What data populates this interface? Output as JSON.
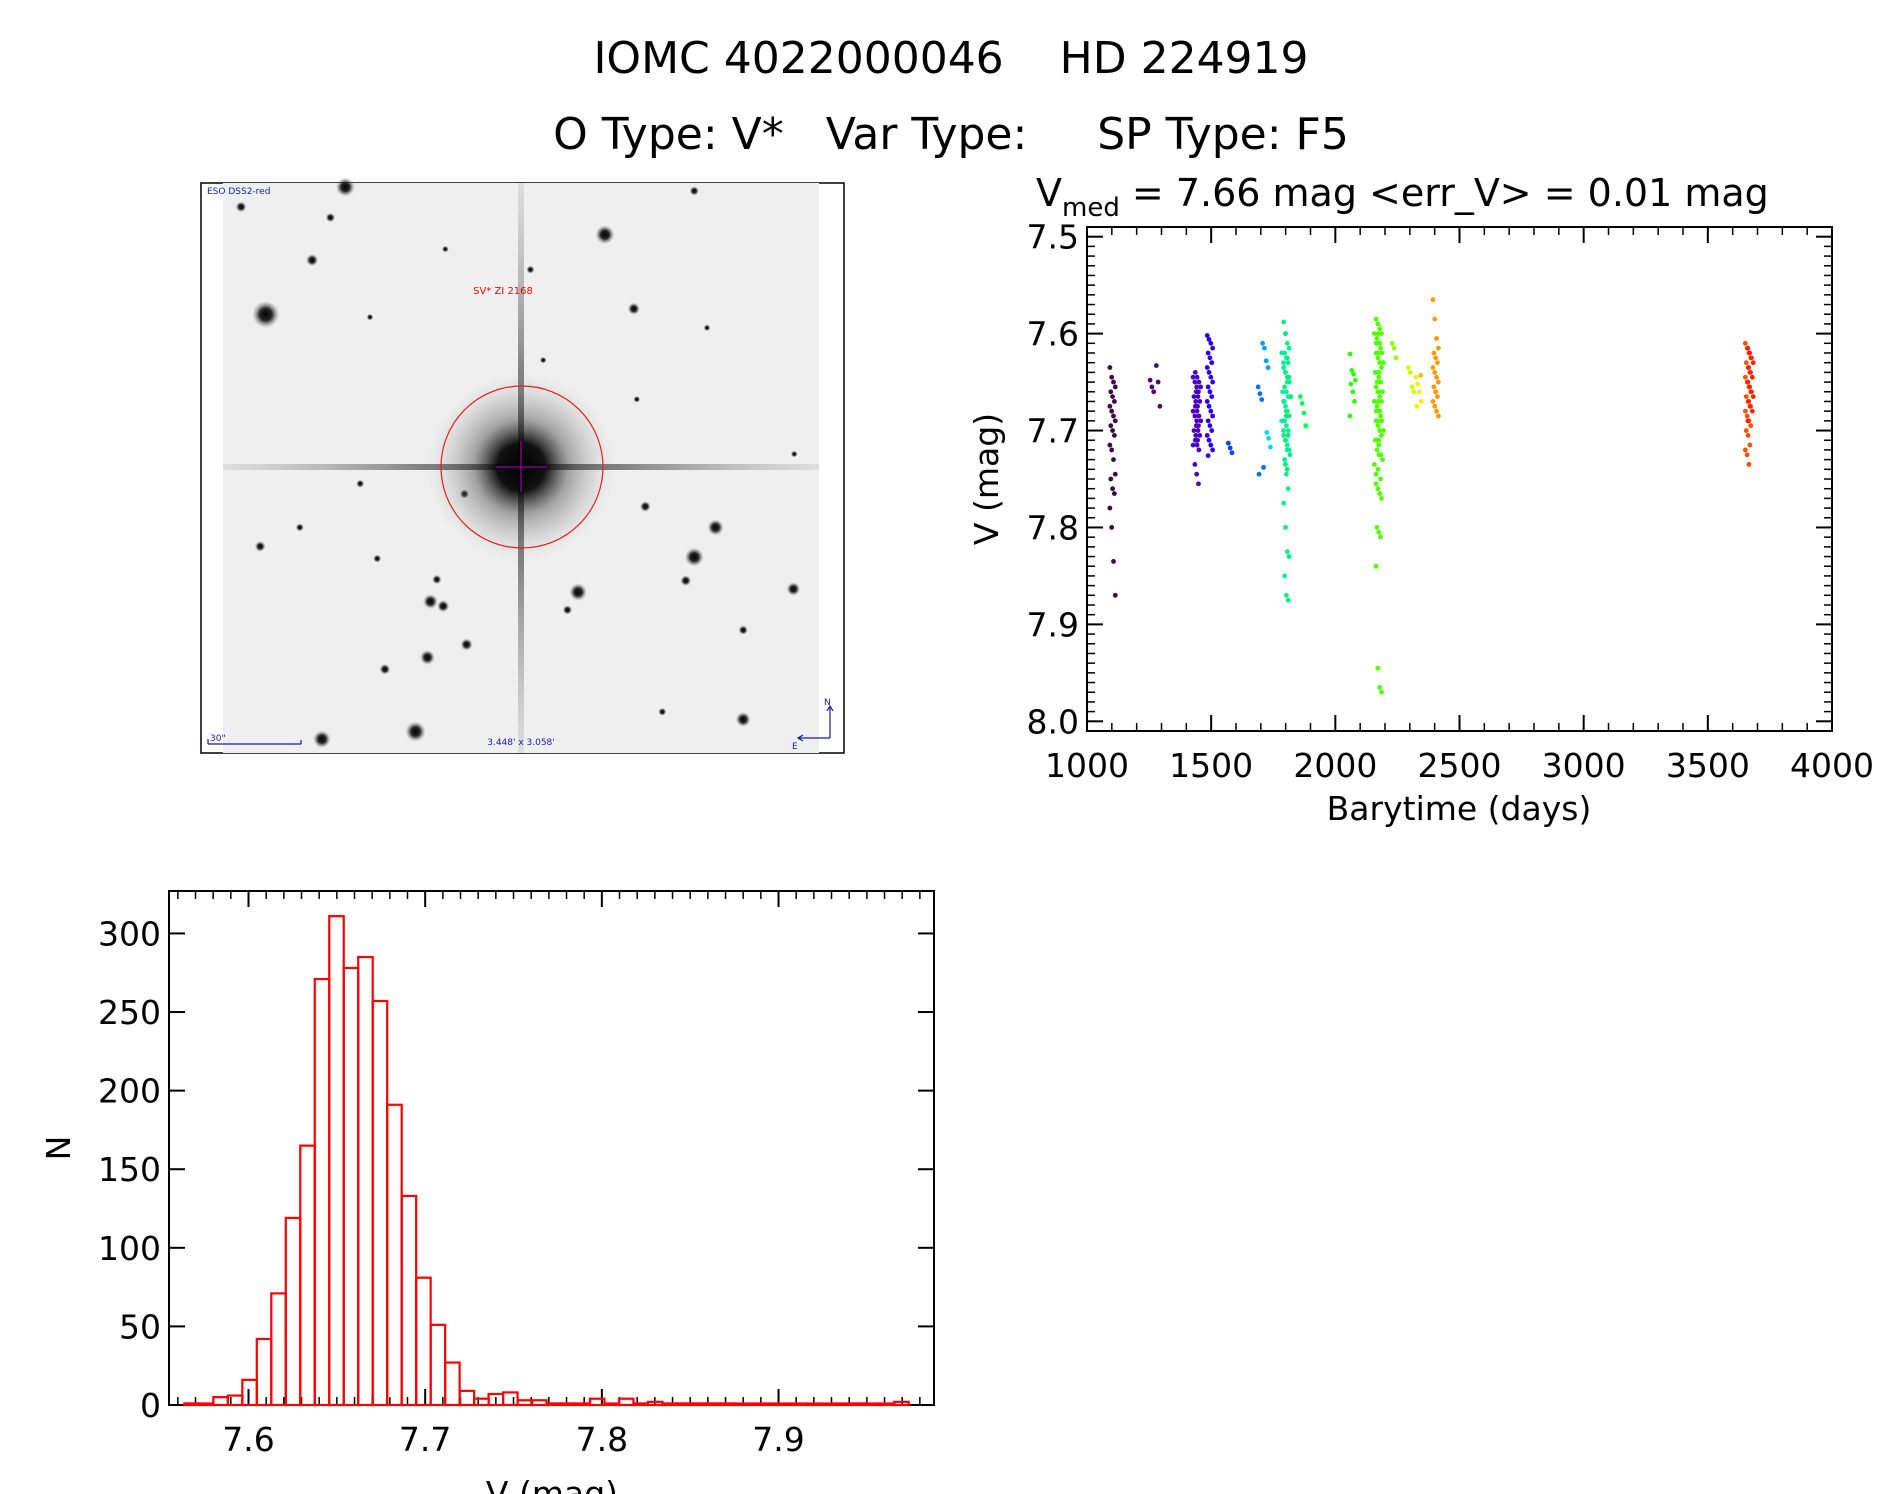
{
  "header": {
    "title_line1": "IOMC 4022000046    HD 224919",
    "title_line2": "O Type: V*   Var Type:     SP Type: F5"
  },
  "finder": {
    "survey_label": "ESO DSS2-red",
    "object_label": "SV* ZI 2168",
    "scale_label": "30\"",
    "fov_label": "3.448' x 3.058'",
    "north_label": "N",
    "east_label": "E",
    "marker_color": "#d01010",
    "label_color": "#1a1aa0"
  },
  "chart_data": [
    {
      "type": "scatter",
      "title_main": "V",
      "title_sub": "med",
      "title_rest": " = 7.66 mag <err_V> = 0.01 mag",
      "xlabel": "Barytime (days)",
      "ylabel": "V (mag)",
      "xlim": [
        1000,
        4000
      ],
      "ylim": [
        7.49,
        8.01
      ],
      "y_reversed": true,
      "xticks": [
        1000,
        1500,
        2000,
        2500,
        3000,
        3500,
        4000
      ],
      "yticks": [
        7.5,
        7.6,
        7.7,
        7.8,
        7.9,
        8.0
      ],
      "xtick_labels": [
        "1000",
        "1500",
        "2000",
        "2500",
        "3000",
        "3500",
        "4000"
      ],
      "ytick_labels": [
        "7.5",
        "7.6",
        "7.7",
        "7.8",
        "7.9",
        "8.0"
      ],
      "grid": false,
      "groups": [
        {
          "x": 1103,
          "color": "#3b0a45",
          "y": [
            7.635,
            7.645,
            7.65,
            7.655,
            7.66,
            7.665,
            7.67,
            7.675,
            7.68,
            7.685,
            7.69,
            7.695,
            7.7,
            7.705,
            7.715,
            7.72,
            7.73,
            7.745,
            7.75,
            7.76,
            7.765,
            7.78,
            7.8,
            7.835,
            7.87
          ]
        },
        {
          "x": 1265,
          "color": "#4b0a6e",
          "y": [
            7.648,
            7.655,
            7.66
          ]
        },
        {
          "x": 1290,
          "color": "#4b0a6e",
          "y": [
            7.633,
            7.65,
            7.675
          ]
        },
        {
          "x": 1438,
          "color": "#4a00c0",
          "y": [
            7.645,
            7.65,
            7.655,
            7.66,
            7.665,
            7.67,
            7.675,
            7.68,
            7.685,
            7.69,
            7.695,
            7.7,
            7.705,
            7.71,
            7.715,
            7.735,
            7.745,
            7.755
          ]
        },
        {
          "x": 1447,
          "color": "#4a00c0",
          "y": [
            7.64,
            7.645,
            7.65,
            7.655,
            7.66,
            7.665,
            7.67,
            7.675,
            7.68,
            7.685,
            7.69,
            7.695,
            7.7,
            7.705,
            7.71,
            7.715,
            7.72
          ]
        },
        {
          "x": 1495,
          "color": "#2a00f0",
          "y": [
            7.602,
            7.606,
            7.61,
            7.615,
            7.62,
            7.625,
            7.63,
            7.635,
            7.64,
            7.645,
            7.65,
            7.655,
            7.66,
            7.665,
            7.67,
            7.675,
            7.68,
            7.685,
            7.69,
            7.695,
            7.7,
            7.705,
            7.71,
            7.715,
            7.72,
            7.726
          ]
        },
        {
          "x": 1580,
          "color": "#0040ff",
          "y": [
            7.713,
            7.718,
            7.723
          ]
        },
        {
          "x": 1700,
          "color": "#0070ff",
          "y": [
            7.655,
            7.662,
            7.668,
            7.738,
            7.745
          ]
        },
        {
          "x": 1718,
          "color": "#00a0ff",
          "y": [
            7.61,
            7.615,
            7.628,
            7.635
          ]
        },
        {
          "x": 1735,
          "color": "#00d8ff",
          "y": [
            7.702,
            7.708,
            7.717
          ]
        },
        {
          "x": 1795,
          "color": "#00f0a0",
          "y": [
            7.62,
            7.63,
            7.64,
            7.65,
            7.66,
            7.67,
            7.68,
            7.69,
            7.7,
            7.71,
            7.72
          ]
        },
        {
          "x": 1803,
          "color": "#00f08a",
          "y": [
            7.588,
            7.6,
            7.61,
            7.615,
            7.62,
            7.625,
            7.63,
            7.635,
            7.64,
            7.645,
            7.65,
            7.655,
            7.66,
            7.665,
            7.67,
            7.675,
            7.68,
            7.685,
            7.69,
            7.695,
            7.7,
            7.705,
            7.71,
            7.715,
            7.72,
            7.73,
            7.745,
            7.76,
            7.775,
            7.8,
            7.825,
            7.83,
            7.85,
            7.87,
            7.875
          ]
        },
        {
          "x": 1810,
          "color": "#00f070",
          "y": [
            7.6,
            7.625,
            7.645,
            7.665,
            7.685,
            7.705,
            7.725,
            7.735,
            7.74
          ]
        },
        {
          "x": 1870,
          "color": "#00ff50",
          "y": [
            7.665,
            7.672,
            7.682,
            7.695
          ]
        },
        {
          "x": 2070,
          "color": "#30ff00",
          "y": [
            7.621,
            7.638,
            7.642,
            7.648,
            7.652,
            7.66,
            7.67,
            7.685
          ]
        },
        {
          "x": 2168,
          "color": "#50ff00",
          "y": [
            7.6,
            7.61,
            7.62,
            7.63,
            7.64,
            7.65,
            7.66,
            7.67,
            7.68,
            7.69,
            7.7,
            7.71,
            7.72,
            7.725,
            7.735,
            7.745
          ]
        },
        {
          "x": 2175,
          "color": "#50ff00",
          "y": [
            7.585,
            7.59,
            7.595,
            7.6,
            7.605,
            7.61,
            7.615,
            7.62,
            7.625,
            7.63,
            7.635,
            7.64,
            7.645,
            7.65,
            7.655,
            7.66,
            7.665,
            7.67,
            7.675,
            7.68,
            7.685,
            7.69,
            7.695,
            7.7,
            7.705,
            7.71,
            7.715,
            7.75,
            7.755,
            7.76,
            7.765,
            7.77,
            7.8,
            7.805,
            7.81,
            7.84,
            7.945,
            7.965,
            7.97
          ]
        },
        {
          "x": 2183,
          "color": "#50ff00",
          "y": [
            7.6,
            7.61,
            7.62,
            7.63,
            7.64,
            7.65,
            7.66,
            7.67,
            7.68,
            7.69,
            7.7,
            7.71,
            7.725,
            7.73,
            7.74
          ]
        },
        {
          "x": 2240,
          "color": "#90ff00",
          "y": [
            7.61,
            7.615,
            7.625
          ]
        },
        {
          "x": 2305,
          "color": "#ccff00",
          "y": [
            7.635,
            7.64,
            7.655,
            7.66
          ]
        },
        {
          "x": 2335,
          "color": "#ffee00",
          "y": [
            7.645,
            7.652,
            7.66,
            7.67,
            7.675
          ]
        },
        {
          "x": 2355,
          "color": "#ffbb00",
          "y": [
            7.643
          ]
        },
        {
          "x": 2404,
          "color": "#ff9900",
          "y": [
            7.565,
            7.585,
            7.605,
            7.615,
            7.62,
            7.625,
            7.63,
            7.635,
            7.64,
            7.645,
            7.65,
            7.655,
            7.66,
            7.665,
            7.67,
            7.675,
            7.68,
            7.685
          ]
        },
        {
          "x": 3662,
          "color": "#ff5000",
          "y": [
            7.61,
            7.615,
            7.62,
            7.625,
            7.63,
            7.635,
            7.64,
            7.645,
            7.65,
            7.655,
            7.66,
            7.665,
            7.67,
            7.675,
            7.68,
            7.685,
            7.69,
            7.695,
            7.7,
            7.705,
            7.715,
            7.72,
            7.725,
            7.735
          ]
        },
        {
          "x": 3672,
          "color": "#ff2200",
          "y": [
            7.615,
            7.62,
            7.625,
            7.63,
            7.635,
            7.64,
            7.645,
            7.65,
            7.655,
            7.66,
            7.665,
            7.67,
            7.675,
            7.68,
            7.69
          ]
        }
      ]
    },
    {
      "type": "bar",
      "subtype": "histogram",
      "xlabel": "V (mag)",
      "ylabel": "N",
      "xlim": [
        7.555,
        7.988
      ],
      "ylim": [
        0,
        327
      ],
      "xticks": [
        7.6,
        7.7,
        7.8,
        7.9
      ],
      "yticks": [
        0,
        50,
        100,
        150,
        200,
        250,
        300
      ],
      "xtick_labels": [
        "7.6",
        "7.7",
        "7.8",
        "7.9"
      ],
      "ytick_labels": [
        "0",
        "50",
        "100",
        "150",
        "200",
        "250",
        "300"
      ],
      "bin_start": 7.5637,
      "bin_width": 0.0082,
      "values": [
        1,
        0,
        5,
        6,
        16,
        42,
        71,
        119,
        165,
        271,
        311,
        278,
        285,
        257,
        191,
        133,
        81,
        51,
        27,
        9,
        4,
        7,
        8,
        3,
        3,
        1,
        1,
        1,
        4,
        0,
        4,
        1,
        2,
        1,
        1,
        1,
        1,
        1,
        0,
        0,
        0,
        0,
        0,
        0,
        0,
        0,
        1,
        0,
        0,
        2
      ],
      "color": "#ff0000",
      "grid": false
    }
  ]
}
